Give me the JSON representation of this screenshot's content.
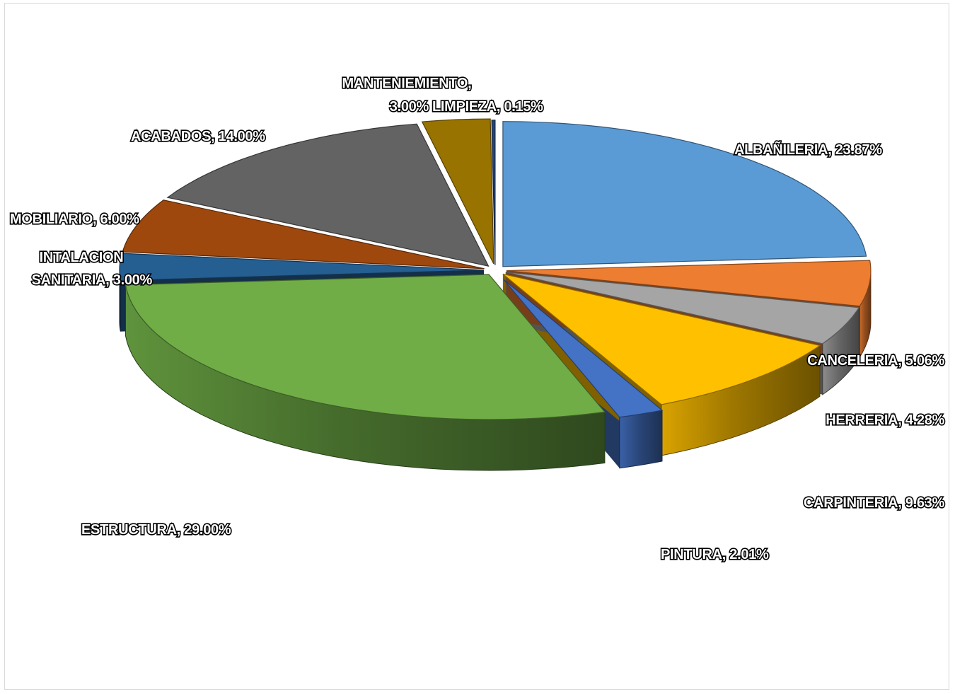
{
  "chart_data": {
    "type": "pie",
    "style": "3d-exploded",
    "title": "",
    "legend": "none",
    "data_labels": "category, percentage",
    "slices": [
      {
        "name": "ALBAÑILERIA",
        "value": 23.87,
        "label": "ALBAÑILERIA, 23.87%",
        "color": "#5b9bd5"
      },
      {
        "name": "CANCELERIA",
        "value": 5.06,
        "label": "CANCELERIA, 5.06%",
        "color": "#ed7d31"
      },
      {
        "name": "HERRERIA",
        "value": 4.28,
        "label": "HERRERIA, 4.28%",
        "color": "#a5a5a5"
      },
      {
        "name": "CARPINTERIA",
        "value": 9.63,
        "label": "CARPINTERIA, 9.63%",
        "color": "#ffc000"
      },
      {
        "name": "PINTURA",
        "value": 2.01,
        "label": "PINTURA, 2.01%",
        "color": "#4472c4"
      },
      {
        "name": "ESTRUCTURA",
        "value": 29.0,
        "label": "ESTRUCTURA, 29.00%",
        "color": "#70ad47"
      },
      {
        "name": "INTALACION SANITARIA",
        "value": 3.0,
        "label": [
          "INTALACION",
          "SANITARIA, 3.00%"
        ],
        "color": "#255e91"
      },
      {
        "name": "MOBILIARIO",
        "value": 6.0,
        "label": "MOBILIARIO, 6.00%",
        "color": "#9e480e"
      },
      {
        "name": "ACABADOS",
        "value": 14.0,
        "label": "ACABADOS, 14.00%",
        "color": "#636363"
      },
      {
        "name": "MANTENIEMIENTO",
        "value": 3.0,
        "label": [
          "MANTENIEMIENTO,",
          "3.00%"
        ],
        "color": "#997300"
      },
      {
        "name": "LIMPIEZA",
        "value": 0.15,
        "label": "LIMPIEZA, 0.15%",
        "color": "#264478"
      }
    ]
  }
}
